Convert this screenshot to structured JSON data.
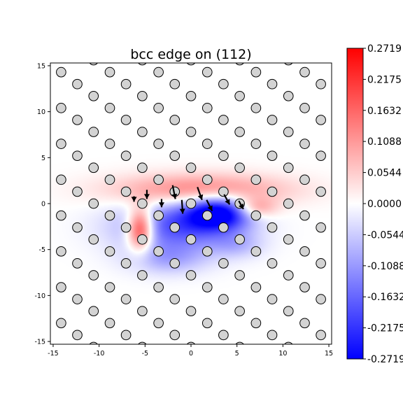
{
  "chart_data": {
    "type": "heatmap",
    "title": "bcc edge on (112)",
    "xlabel": "",
    "ylabel": "",
    "xlim": [
      -15.3,
      15.3
    ],
    "ylim": [
      -15.3,
      15.3
    ],
    "x_ticks": [
      -15,
      -10,
      -5,
      0,
      5,
      10,
      15
    ],
    "y_ticks": [
      -15,
      -10,
      -5,
      0,
      5,
      10,
      15
    ],
    "colormap": "bwr",
    "colors": {
      "low": "#0000ff",
      "mid": "#ffffff",
      "high": "#ff0000"
    },
    "clim": [
      -0.2719,
      0.2719
    ],
    "colorbar_ticks": [
      {
        "value": 0.2719,
        "label": "0.2719"
      },
      {
        "value": 0.2175,
        "label": "0.2175"
      },
      {
        "value": 0.1632,
        "label": "0.1632"
      },
      {
        "value": 0.1088,
        "label": "0.1088"
      },
      {
        "value": 0.0544,
        "label": "0.0544"
      },
      {
        "value": 0.0,
        "label": "0.0000"
      },
      {
        "value": -0.0544,
        "label": "-0.0544"
      },
      {
        "value": -0.1088,
        "label": "-0.1088"
      },
      {
        "value": -0.1632,
        "label": "-0.1632"
      },
      {
        "value": -0.2175,
        "label": "-0.2175"
      },
      {
        "value": -0.2719,
        "label": "-0.2719"
      }
    ],
    "lattice": {
      "row_spacing": 1.3,
      "col_spacing": 5.3,
      "marker_radius": 0.52,
      "row_offsets": [
        0.0,
        3.53,
        1.77
      ]
    },
    "strain_blobs": [
      {
        "x": 1.0,
        "y": 1.5,
        "sx": 6.5,
        "sy": 1.2,
        "amp": 0.14
      },
      {
        "x": -5.5,
        "y": -2.8,
        "sx": 1.0,
        "sy": 1.6,
        "amp": 0.27
      },
      {
        "x": 7.0,
        "y": -0.5,
        "sx": 1.6,
        "sy": 0.8,
        "amp": 0.12
      },
      {
        "x": -1.5,
        "y": -2.5,
        "sx": 4.5,
        "sy": 1.9,
        "amp": -0.18
      },
      {
        "x": 3.0,
        "y": -1.0,
        "sx": 2.5,
        "sy": 1.3,
        "amp": -0.27
      },
      {
        "x": -2.5,
        "y": -6.0,
        "sx": 3.0,
        "sy": 1.2,
        "amp": -0.08
      },
      {
        "x": 5.0,
        "y": -4.5,
        "sx": 2.0,
        "sy": 1.0,
        "amp": -0.06
      }
    ],
    "displacement_arrows": [
      {
        "x": -2.0,
        "y": 2.0,
        "dx": 0.3,
        "dy": -1.5
      },
      {
        "x": -1.0,
        "y": 0.4,
        "dx": 0.1,
        "dy": -1.5
      },
      {
        "x": 0.7,
        "y": 1.8,
        "dx": 0.5,
        "dy": -1.4
      },
      {
        "x": 1.7,
        "y": 0.4,
        "dx": 0.6,
        "dy": -1.2
      },
      {
        "x": 3.6,
        "y": 1.0,
        "dx": 0.6,
        "dy": -1.1
      },
      {
        "x": -4.8,
        "y": 1.5,
        "dx": 0.0,
        "dy": -1.0
      },
      {
        "x": -3.2,
        "y": 0.5,
        "dx": 0.0,
        "dy": -0.9
      },
      {
        "x": 5.2,
        "y": 0.3,
        "dx": 0.5,
        "dy": -0.9
      },
      {
        "x": -6.2,
        "y": 0.8,
        "dx": 0.0,
        "dy": -0.6
      }
    ]
  }
}
